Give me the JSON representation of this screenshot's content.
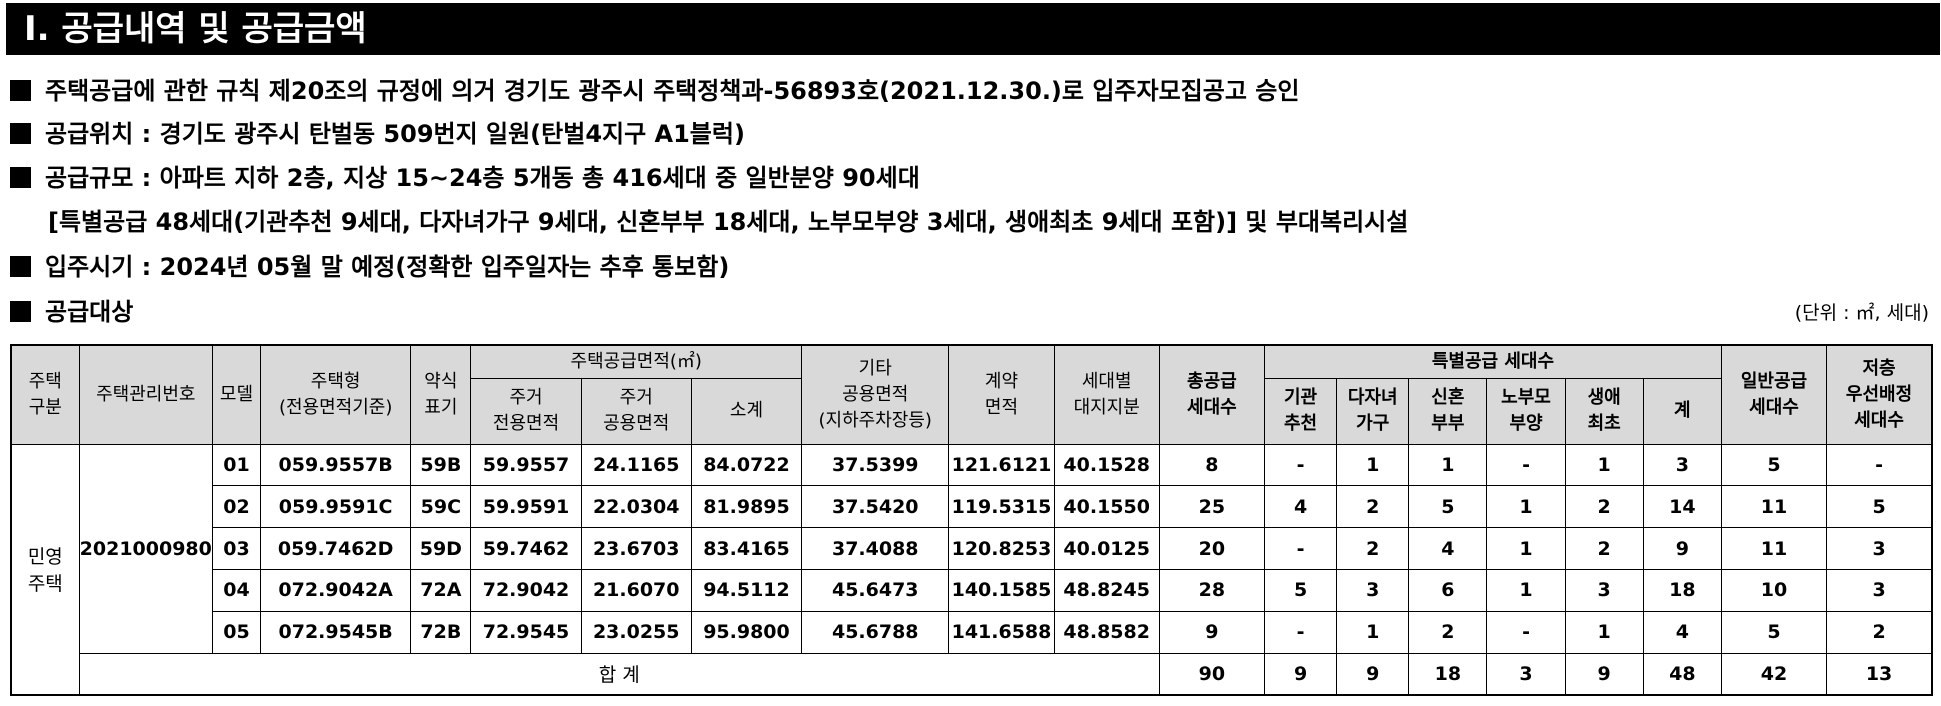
{
  "title": "Ⅰ. 공급내역 및 공급금액",
  "bullets": {
    "b1": "주택공급에 관한 규칙 제20조의 규정에 의거 경기도 광주시 주택정책과-56893호(2021.12.30.)로 입주자모집공고 승인",
    "b2": "공급위치 : 경기도 광주시 탄벌동 509번지 일원(탄벌4지구 A1블럭)",
    "b3": "공급규모 : 아파트 지하 2층, 지상 15~24층 5개동 총 416세대 중 일반분양 90세대",
    "b3_cont": "[특별공급 48세대(기관추천 9세대, 다자녀가구 9세대, 신혼부부 18세대, 노부모부양 3세대, 생애최초 9세대 포함)] 및 부대복리시설",
    "b4": "입주시기 : 2024년 05월 말 예정(정확한 입주일자는 추후 통보함)",
    "b5": "공급대상"
  },
  "unit_note": "(단위 : ㎡, 세대)",
  "headers": {
    "type_1": "주택",
    "type_2": "구분",
    "mgmt_no": "주택관리번호",
    "model": "모델",
    "house_type_1": "주택형",
    "house_type_2": "(전용면적기준)",
    "abbr_1": "약식",
    "abbr_2": "표기",
    "supply_area": "주택공급면적(㎡)",
    "resid_excl_1": "주거",
    "resid_excl_2": "전용면적",
    "resid_comm_1": "주거",
    "resid_comm_2": "공용면적",
    "subtotal": "소계",
    "other_1": "기타",
    "other_2": "공용면적",
    "other_3": "(지하주차장등)",
    "contract_1": "계약",
    "contract_2": "면적",
    "land_1": "세대별",
    "land_2": "대지지분",
    "total_units_1": "총공급",
    "total_units_2": "세대수",
    "special": "특별공급 세대수",
    "inst_1": "기관",
    "inst_2": "추천",
    "multi_1": "다자녀",
    "multi_2": "가구",
    "newly_1": "신혼",
    "newly_2": "부부",
    "elder_1": "노부모",
    "elder_2": "부양",
    "first_1": "생애",
    "first_2": "최초",
    "sp_total": "계",
    "general_1": "일반공급",
    "general_2": "세대수",
    "low_1": "저층",
    "low_2": "우선배정",
    "low_3": "세대수"
  },
  "table": {
    "house_category_1": "민영",
    "house_category_2": "주택",
    "mgmt_number": "2021000980",
    "rows": [
      {
        "model": "01",
        "type": "059.9557B",
        "abbr": "59B",
        "excl": "59.9557",
        "comm": "24.1165",
        "sub": "84.0722",
        "other": "37.5399",
        "contract": "121.6121",
        "land": "40.1528",
        "total": "8",
        "inst": "-",
        "multi": "1",
        "newly": "1",
        "elder": "-",
        "first": "1",
        "sp": "3",
        "general": "5",
        "low": "-"
      },
      {
        "model": "02",
        "type": "059.9591C",
        "abbr": "59C",
        "excl": "59.9591",
        "comm": "22.0304",
        "sub": "81.9895",
        "other": "37.5420",
        "contract": "119.5315",
        "land": "40.1550",
        "total": "25",
        "inst": "4",
        "multi": "2",
        "newly": "5",
        "elder": "1",
        "first": "2",
        "sp": "14",
        "general": "11",
        "low": "5"
      },
      {
        "model": "03",
        "type": "059.7462D",
        "abbr": "59D",
        "excl": "59.7462",
        "comm": "23.6703",
        "sub": "83.4165",
        "other": "37.4088",
        "contract": "120.8253",
        "land": "40.0125",
        "total": "20",
        "inst": "-",
        "multi": "2",
        "newly": "4",
        "elder": "1",
        "first": "2",
        "sp": "9",
        "general": "11",
        "low": "3"
      },
      {
        "model": "04",
        "type": "072.9042A",
        "abbr": "72A",
        "excl": "72.9042",
        "comm": "21.6070",
        "sub": "94.5112",
        "other": "45.6473",
        "contract": "140.1585",
        "land": "48.8245",
        "total": "28",
        "inst": "5",
        "multi": "3",
        "newly": "6",
        "elder": "1",
        "first": "3",
        "sp": "18",
        "general": "10",
        "low": "3"
      },
      {
        "model": "05",
        "type": "072.9545B",
        "abbr": "72B",
        "excl": "72.9545",
        "comm": "23.0255",
        "sub": "95.9800",
        "other": "45.6788",
        "contract": "141.6588",
        "land": "48.8582",
        "total": "9",
        "inst": "-",
        "multi": "1",
        "newly": "2",
        "elder": "-",
        "first": "1",
        "sp": "4",
        "general": "5",
        "low": "2"
      }
    ],
    "total_row": {
      "label": "합 계",
      "total": "90",
      "inst": "9",
      "multi": "9",
      "newly": "18",
      "elder": "3",
      "first": "9",
      "sp": "48",
      "general": "42",
      "low": "13"
    }
  }
}
